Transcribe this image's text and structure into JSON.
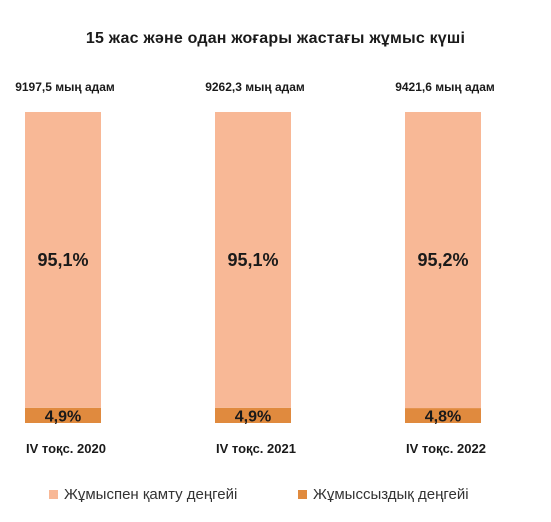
{
  "chart_data": {
    "type": "bar",
    "stacked": true,
    "percent": true,
    "title": "15 жас және одан жоғары жастағы жұмыс күші",
    "categories": [
      "IV тоқс. 2020",
      "IV тоқс. 2021",
      "IV тоқс. 2022"
    ],
    "totals": [
      "9197,5 мың адам",
      "9262,3 мың адам",
      "9421,6 мың адам"
    ],
    "series": [
      {
        "name": "Жұмыспен қамту деңгейі",
        "values": [
          95.1,
          95.1,
          95.2
        ],
        "labels": [
          "95,1%",
          "95,1%",
          "95,2%"
        ],
        "color": "#F8B896"
      },
      {
        "name": "Жұмыссыздық деңгейі",
        "values": [
          4.9,
          4.9,
          4.8
        ],
        "labels": [
          "4,9%",
          "4,9%",
          "4,8%"
        ],
        "color": "#E08A3E"
      }
    ],
    "ylim": [
      0,
      100
    ],
    "grid": false,
    "legend": "bottom"
  }
}
